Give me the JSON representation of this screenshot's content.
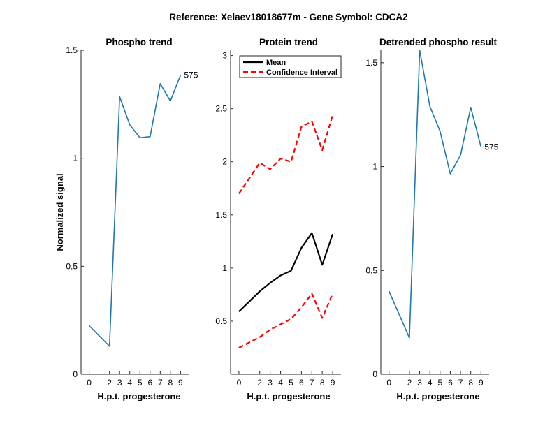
{
  "title": "Reference:  Xelaev18018677m - Gene Symbol:  CDCA2",
  "colors": {
    "phospho": "#1f77b4",
    "mean": "#000000",
    "ci": "#ff0000"
  },
  "chart_data": [
    {
      "type": "line",
      "title": "Phospho trend",
      "xlabel": "H.p.t. progesterone",
      "ylabel": "Normalized signal",
      "x": [
        0,
        2,
        3,
        4,
        5,
        6,
        7,
        8,
        9
      ],
      "xticks": [
        "0",
        "2",
        "3",
        "4",
        "5",
        "6",
        "7",
        "8",
        "9"
      ],
      "ylim": [
        0,
        1.5
      ],
      "yticks": [
        0,
        0.5,
        1,
        1.5
      ],
      "ytick_labels": [
        "0",
        "0.5",
        "1",
        "1.5"
      ],
      "series": [
        {
          "values": [
            0.225,
            0.13,
            1.285,
            1.155,
            1.095,
            1.1,
            1.345,
            1.265,
            1.385
          ],
          "end_label": "575"
        }
      ]
    },
    {
      "type": "line",
      "title": "Protein trend",
      "xlabel": "H.p.t. progesterone",
      "ylabel": "",
      "x": [
        0,
        2,
        3,
        4,
        5,
        6,
        7,
        8,
        9
      ],
      "xticks": [
        "0",
        "2",
        "3",
        "4",
        "5",
        "6",
        "7",
        "8",
        "9"
      ],
      "ylim": [
        0,
        3.05
      ],
      "yticks": [
        0.5,
        1,
        1.5,
        2,
        2.5,
        3
      ],
      "ytick_labels": [
        "0.5",
        "1",
        "1.5",
        "2",
        "2.5",
        "3"
      ],
      "legend": {
        "placement": "top-left",
        "entries": [
          "Mean",
          "Confidence Interval"
        ]
      },
      "series": [
        {
          "name": "Mean",
          "values": [
            0.59,
            0.78,
            0.86,
            0.93,
            0.975,
            1.19,
            1.33,
            1.03,
            1.32
          ]
        },
        {
          "name": "Confidence Interval",
          "values": [
            1.7,
            1.99,
            1.93,
            2.03,
            2.0,
            2.33,
            2.38,
            2.11,
            2.44
          ]
        },
        {
          "name": "Confidence Interval",
          "values": [
            0.25,
            0.35,
            0.42,
            0.47,
            0.52,
            0.63,
            0.76,
            0.53,
            0.76
          ]
        }
      ]
    },
    {
      "type": "line",
      "title": "Detrended phospho result",
      "xlabel": "H.p.t. progesterone",
      "ylabel": "",
      "x": [
        0,
        2,
        3,
        4,
        5,
        6,
        7,
        8,
        9
      ],
      "xticks": [
        "0",
        "2",
        "3",
        "4",
        "5",
        "6",
        "7",
        "8",
        "9"
      ],
      "ylim": [
        0,
        1.56
      ],
      "yticks": [
        0,
        0.5,
        1,
        1.5
      ],
      "ytick_labels": [
        "0",
        "0.5",
        "1",
        "1.5"
      ],
      "series": [
        {
          "values": [
            0.4,
            0.175,
            1.56,
            1.29,
            1.17,
            0.965,
            1.055,
            1.285,
            1.095
          ],
          "end_label": "575"
        }
      ]
    }
  ]
}
